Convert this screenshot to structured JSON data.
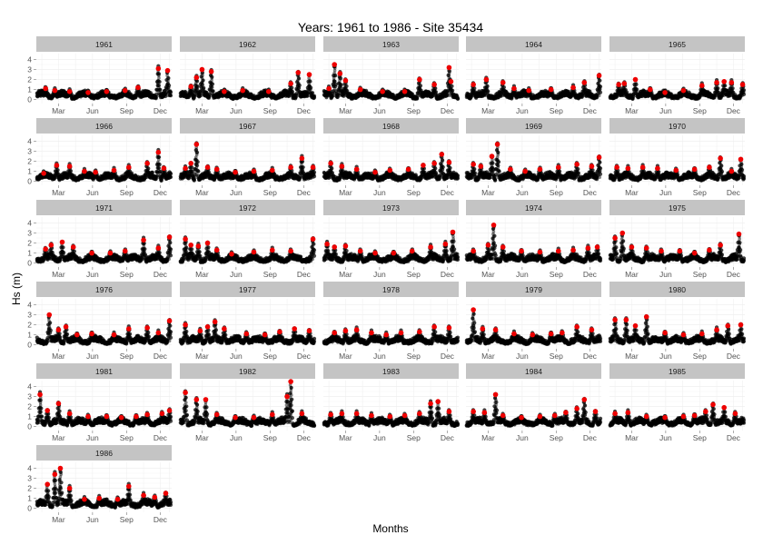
{
  "chart_data": {
    "type": "scatter",
    "title": "Years: 1961 to 1986 - Site  35434",
    "xlabel": "Months",
    "ylabel": "Hs (m)",
    "x_ticks": [
      "Mar",
      "Jun",
      "Sep",
      "Dec"
    ],
    "y_ticks": [
      0,
      1,
      2,
      3,
      4
    ],
    "ylim": [
      -0.4,
      4.6
    ],
    "grid": true,
    "facets": [
      {
        "year": "1961",
        "peaks": [
          [
            25,
            1.1
          ],
          [
            50,
            0.9
          ],
          [
            90,
            0.8
          ],
          [
            140,
            0.7
          ],
          [
            190,
            0.8
          ],
          [
            240,
            0.9
          ],
          [
            275,
            1.2
          ],
          [
            330,
            3.1
          ],
          [
            355,
            2.9
          ]
        ]
      },
      {
        "year": "1962",
        "peaks": [
          [
            30,
            1.3
          ],
          [
            45,
            2.2
          ],
          [
            60,
            3.0
          ],
          [
            85,
            2.8
          ],
          [
            120,
            0.8
          ],
          [
            170,
            0.9
          ],
          [
            240,
            0.8
          ],
          [
            300,
            1.6
          ],
          [
            320,
            2.7
          ],
          [
            350,
            2.5
          ]
        ]
      },
      {
        "year": "1963",
        "peaks": [
          [
            15,
            1.1
          ],
          [
            30,
            3.5
          ],
          [
            45,
            2.6
          ],
          [
            60,
            1.9
          ],
          [
            100,
            1.0
          ],
          [
            160,
            0.8
          ],
          [
            220,
            0.8
          ],
          [
            260,
            2.0
          ],
          [
            300,
            1.5
          ],
          [
            340,
            3.2
          ],
          [
            345,
            1.8
          ]
        ]
      },
      {
        "year": "1964",
        "peaks": [
          [
            20,
            1.5
          ],
          [
            55,
            2.0
          ],
          [
            100,
            1.7
          ],
          [
            130,
            1.1
          ],
          [
            170,
            0.9
          ],
          [
            230,
            1.0
          ],
          [
            290,
            1.2
          ],
          [
            320,
            1.7
          ],
          [
            360,
            2.4
          ]
        ]
      },
      {
        "year": "1965",
        "peaks": [
          [
            25,
            1.5
          ],
          [
            40,
            1.6
          ],
          [
            70,
            2.0
          ],
          [
            110,
            1.0
          ],
          [
            150,
            0.7
          ],
          [
            200,
            0.9
          ],
          [
            250,
            1.4
          ],
          [
            290,
            1.7
          ],
          [
            310,
            1.8
          ],
          [
            330,
            1.7
          ],
          [
            360,
            1.5
          ]
        ]
      },
      {
        "year": "1966",
        "peaks": [
          [
            20,
            0.8
          ],
          [
            55,
            1.6
          ],
          [
            90,
            1.5
          ],
          [
            130,
            1.0
          ],
          [
            160,
            0.9
          ],
          [
            210,
            1.1
          ],
          [
            250,
            1.4
          ],
          [
            300,
            1.8
          ],
          [
            330,
            2.9
          ],
          [
            345,
            1.3
          ]
        ]
      },
      {
        "year": "1967",
        "peaks": [
          [
            15,
            1.3
          ],
          [
            30,
            1.8
          ],
          [
            45,
            3.7
          ],
          [
            75,
            1.4
          ],
          [
            100,
            1.2
          ],
          [
            150,
            0.9
          ],
          [
            200,
            1.0
          ],
          [
            250,
            1.1
          ],
          [
            300,
            1.4
          ],
          [
            330,
            2.3
          ],
          [
            360,
            1.4
          ]
        ]
      },
      {
        "year": "1968",
        "peaks": [
          [
            20,
            1.8
          ],
          [
            50,
            1.5
          ],
          [
            90,
            1.2
          ],
          [
            140,
            0.9
          ],
          [
            180,
            1.1
          ],
          [
            230,
            1.2
          ],
          [
            270,
            1.6
          ],
          [
            300,
            1.8
          ],
          [
            320,
            2.7
          ],
          [
            340,
            1.9
          ]
        ]
      },
      {
        "year": "1969",
        "peaks": [
          [
            20,
            1.7
          ],
          [
            40,
            1.5
          ],
          [
            70,
            2.5
          ],
          [
            85,
            3.7
          ],
          [
            120,
            1.2
          ],
          [
            160,
            1.0
          ],
          [
            200,
            1.2
          ],
          [
            250,
            1.4
          ],
          [
            300,
            1.7
          ],
          [
            340,
            1.5
          ],
          [
            360,
            2.4
          ]
        ]
      },
      {
        "year": "1970",
        "peaks": [
          [
            20,
            1.4
          ],
          [
            50,
            1.3
          ],
          [
            90,
            1.4
          ],
          [
            130,
            1.3
          ],
          [
            180,
            1.1
          ],
          [
            230,
            1.2
          ],
          [
            270,
            1.4
          ],
          [
            300,
            2.3
          ],
          [
            330,
            1.0
          ],
          [
            355,
            2.2
          ]
        ]
      },
      {
        "year": "1971",
        "peaks": [
          [
            25,
            1.4
          ],
          [
            40,
            1.8
          ],
          [
            70,
            2.1
          ],
          [
            100,
            1.6
          ],
          [
            150,
            1.0
          ],
          [
            200,
            1.0
          ],
          [
            240,
            1.2
          ],
          [
            290,
            2.3
          ],
          [
            330,
            1.5
          ],
          [
            360,
            2.6
          ]
        ]
      },
      {
        "year": "1972",
        "peaks": [
          [
            15,
            2.4
          ],
          [
            30,
            1.8
          ],
          [
            50,
            1.7
          ],
          [
            75,
            2.0
          ],
          [
            100,
            1.3
          ],
          [
            140,
            0.9
          ],
          [
            200,
            1.1
          ],
          [
            250,
            1.3
          ],
          [
            300,
            1.2
          ],
          [
            360,
            2.4
          ]
        ]
      },
      {
        "year": "1973",
        "peaks": [
          [
            10,
            1.9
          ],
          [
            30,
            1.6
          ],
          [
            60,
            1.7
          ],
          [
            100,
            1.2
          ],
          [
            140,
            1.0
          ],
          [
            190,
            1.0
          ],
          [
            240,
            1.2
          ],
          [
            290,
            1.6
          ],
          [
            330,
            1.9
          ],
          [
            350,
            3.1
          ]
        ]
      },
      {
        "year": "1974",
        "peaks": [
          [
            20,
            1.2
          ],
          [
            60,
            1.8
          ],
          [
            75,
            3.8
          ],
          [
            100,
            1.6
          ],
          [
            150,
            1.2
          ],
          [
            200,
            1.1
          ],
          [
            250,
            1.2
          ],
          [
            290,
            1.3
          ],
          [
            330,
            1.5
          ],
          [
            355,
            1.6
          ]
        ]
      },
      {
        "year": "1975",
        "peaks": [
          [
            15,
            2.5
          ],
          [
            35,
            3.0
          ],
          [
            60,
            1.6
          ],
          [
            100,
            1.5
          ],
          [
            140,
            1.2
          ],
          [
            190,
            1.2
          ],
          [
            230,
            1.0
          ],
          [
            270,
            1.3
          ],
          [
            300,
            1.8
          ],
          [
            350,
            2.9
          ]
        ]
      },
      {
        "year": "1976",
        "peaks": [
          [
            35,
            3.0
          ],
          [
            60,
            1.5
          ],
          [
            80,
            1.8
          ],
          [
            110,
            1.0
          ],
          [
            150,
            1.1
          ],
          [
            210,
            1.0
          ],
          [
            250,
            1.6
          ],
          [
            300,
            1.7
          ],
          [
            330,
            1.2
          ],
          [
            360,
            2.4
          ]
        ]
      },
      {
        "year": "1977",
        "peaks": [
          [
            15,
            2.0
          ],
          [
            55,
            1.4
          ],
          [
            75,
            1.8
          ],
          [
            95,
            2.3
          ],
          [
            120,
            1.6
          ],
          [
            180,
            1.1
          ],
          [
            230,
            1.0
          ],
          [
            270,
            1.3
          ],
          [
            310,
            1.6
          ],
          [
            350,
            1.4
          ]
        ]
      },
      {
        "year": "1978",
        "peaks": [
          [
            30,
            1.2
          ],
          [
            60,
            1.4
          ],
          [
            90,
            1.5
          ],
          [
            130,
            1.2
          ],
          [
            170,
            1.0
          ],
          [
            210,
            1.2
          ],
          [
            260,
            1.3
          ],
          [
            300,
            1.8
          ],
          [
            340,
            1.7
          ]
        ]
      },
      {
        "year": "1979",
        "peaks": [
          [
            20,
            3.5
          ],
          [
            45,
            1.6
          ],
          [
            80,
            1.5
          ],
          [
            130,
            1.1
          ],
          [
            180,
            1.0
          ],
          [
            230,
            1.1
          ],
          [
            260,
            1.2
          ],
          [
            300,
            1.8
          ],
          [
            340,
            1.5
          ]
        ]
      },
      {
        "year": "1980",
        "peaks": [
          [
            15,
            2.5
          ],
          [
            45,
            2.5
          ],
          [
            70,
            1.9
          ],
          [
            100,
            2.8
          ],
          [
            150,
            1.2
          ],
          [
            200,
            1.0
          ],
          [
            250,
            1.1
          ],
          [
            290,
            1.5
          ],
          [
            320,
            1.9
          ],
          [
            355,
            2.0
          ]
        ]
      },
      {
        "year": "1981",
        "peaks": [
          [
            10,
            3.2
          ],
          [
            30,
            1.6
          ],
          [
            60,
            2.3
          ],
          [
            90,
            1.3
          ],
          [
            140,
            1.0
          ],
          [
            190,
            1.0
          ],
          [
            230,
            0.9
          ],
          [
            270,
            1.0
          ],
          [
            300,
            1.2
          ],
          [
            340,
            1.3
          ],
          [
            360,
            1.6
          ]
        ]
      },
      {
        "year": "1982",
        "peaks": [
          [
            15,
            3.4
          ],
          [
            45,
            2.7
          ],
          [
            70,
            2.7
          ],
          [
            100,
            1.2
          ],
          [
            150,
            0.9
          ],
          [
            200,
            0.9
          ],
          [
            250,
            1.2
          ],
          [
            290,
            3.0
          ],
          [
            300,
            4.5
          ],
          [
            330,
            1.3
          ]
        ]
      },
      {
        "year": "1983",
        "peaks": [
          [
            20,
            1.2
          ],
          [
            50,
            1.3
          ],
          [
            90,
            1.3
          ],
          [
            130,
            1.1
          ],
          [
            180,
            1.0
          ],
          [
            220,
            1.1
          ],
          [
            260,
            1.3
          ],
          [
            290,
            2.3
          ],
          [
            310,
            2.5
          ],
          [
            340,
            1.5
          ]
        ]
      },
      {
        "year": "1984",
        "peaks": [
          [
            20,
            1.5
          ],
          [
            50,
            1.4
          ],
          [
            80,
            3.2
          ],
          [
            100,
            1.1
          ],
          [
            150,
            0.9
          ],
          [
            200,
            1.0
          ],
          [
            240,
            1.1
          ],
          [
            270,
            1.4
          ],
          [
            300,
            1.8
          ],
          [
            320,
            2.7
          ],
          [
            350,
            1.5
          ]
        ]
      },
      {
        "year": "1985",
        "peaks": [
          [
            15,
            1.3
          ],
          [
            50,
            1.4
          ],
          [
            100,
            1.0
          ],
          [
            150,
            0.9
          ],
          [
            200,
            1.0
          ],
          [
            230,
            1.1
          ],
          [
            260,
            1.5
          ],
          [
            280,
            2.2
          ],
          [
            310,
            1.9
          ],
          [
            340,
            1.3
          ]
        ]
      },
      {
        "year": "1986",
        "peaks": [
          [
            30,
            2.4
          ],
          [
            50,
            3.4
          ],
          [
            65,
            4.0
          ],
          [
            90,
            2.0
          ],
          [
            130,
            0.9
          ],
          [
            170,
            1.0
          ],
          [
            220,
            0.9
          ],
          [
            250,
            2.2
          ],
          [
            290,
            1.3
          ],
          [
            320,
            1.1
          ],
          [
            350,
            1.5
          ]
        ]
      }
    ]
  }
}
